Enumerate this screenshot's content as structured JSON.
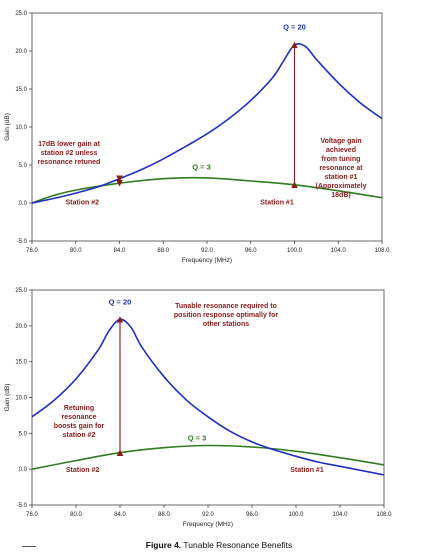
{
  "chart_data": [
    {
      "type": "line",
      "xlabel": "Frequency (MHz)",
      "ylabel": "Gain (dB)",
      "xlim": [
        76.0,
        108.0
      ],
      "ylim": [
        -5.0,
        25.0
      ],
      "x_ticks": [
        "76.0",
        "80.0",
        "84.0",
        "88.0",
        "92.0",
        "96.0",
        "100.0",
        "104.0",
        "108.0"
      ],
      "y_ticks": [
        "-5.0",
        "0.0",
        "5.0",
        "10.0",
        "15.0",
        "20.0",
        "25.0"
      ],
      "grid": false,
      "series": [
        {
          "name": "Q = 20",
          "color": "#1f2fbf",
          "points": [
            [
              76.0,
              0.0
            ],
            [
              78.0,
              0.6
            ],
            [
              80.0,
              1.3
            ],
            [
              82.0,
              2.1
            ],
            [
              84.0,
              3.2
            ],
            [
              86.0,
              4.4
            ],
            [
              88.0,
              5.8
            ],
            [
              90.0,
              7.4
            ],
            [
              92.0,
              9.1
            ],
            [
              94.0,
              11.1
            ],
            [
              96.0,
              13.5
            ],
            [
              98.0,
              16.5
            ],
            [
              99.0,
              18.7
            ],
            [
              100.0,
              20.8
            ],
            [
              101.0,
              20.6
            ],
            [
              102.0,
              18.9
            ],
            [
              104.0,
              15.8
            ],
            [
              106.0,
              13.2
            ],
            [
              108.0,
              11.1
            ]
          ]
        },
        {
          "name": "Q = 3",
          "color": "#2f7d1f",
          "points": [
            [
              76.0,
              0.0
            ],
            [
              78.0,
              1.0
            ],
            [
              80.0,
              1.7
            ],
            [
              84.0,
              2.6
            ],
            [
              88.0,
              3.2
            ],
            [
              92.0,
              3.3
            ],
            [
              96.0,
              2.9
            ],
            [
              100.0,
              2.4
            ],
            [
              104.0,
              1.6
            ],
            [
              108.0,
              0.7
            ]
          ]
        }
      ],
      "annotations": {
        "top_left_red": [
          "17dB lower gain at",
          "station #2 unless",
          "resonance retuned"
        ],
        "right_red": [
          "Voltage gain",
          "achieved",
          "from tuning",
          "resonance at",
          "station #1",
          "(Approximately",
          "18dB)"
        ],
        "q20_label": "Q = 20",
        "q3_label": "Q = 3",
        "station2": "Station #2",
        "station1": "Station #1"
      },
      "arrows": [
        {
          "x": 100.0,
          "y_from": 2.4,
          "y_to": 20.8
        },
        {
          "x": 84.0,
          "y_from": 3.2,
          "y_to": 2.6
        }
      ]
    },
    {
      "type": "line",
      "xlabel": "Frequency (MHz)",
      "ylabel": "Gain (dB)",
      "xlim": [
        76.0,
        108.0
      ],
      "ylim": [
        -5.0,
        25.0
      ],
      "x_ticks": [
        "76.0",
        "80.0",
        "84.0",
        "88.0",
        "92.0",
        "96.0",
        "100.0",
        "104.0",
        "108.0"
      ],
      "y_ticks": [
        "-5.0",
        "0.0",
        "5.0",
        "10.0",
        "15.0",
        "20.0",
        "25.0"
      ],
      "grid": false,
      "series": [
        {
          "name": "Q = 20",
          "color": "#1f2fbf",
          "points": [
            [
              76.0,
              7.3
            ],
            [
              78.0,
              9.6
            ],
            [
              80.0,
              12.6
            ],
            [
              82.0,
              16.6
            ],
            [
              83.0,
              19.3
            ],
            [
              84.0,
              20.9
            ],
            [
              85.0,
              19.8
            ],
            [
              86.0,
              17.0
            ],
            [
              88.0,
              12.9
            ],
            [
              90.0,
              9.7
            ],
            [
              92.0,
              7.3
            ],
            [
              94.0,
              5.3
            ],
            [
              96.0,
              3.8
            ],
            [
              98.0,
              2.7
            ],
            [
              100.0,
              1.8
            ],
            [
              102.0,
              1.0
            ],
            [
              104.0,
              0.4
            ],
            [
              106.0,
              -0.2
            ],
            [
              108.0,
              -0.8
            ]
          ]
        },
        {
          "name": "Q = 3",
          "color": "#2f7d1f",
          "points": [
            [
              76.0,
              0.0
            ],
            [
              80.0,
              1.2
            ],
            [
              84.0,
              2.3
            ],
            [
              88.0,
              3.0
            ],
            [
              92.0,
              3.3
            ],
            [
              96.0,
              3.1
            ],
            [
              100.0,
              2.5
            ],
            [
              104.0,
              1.6
            ],
            [
              108.0,
              0.6
            ]
          ]
        }
      ],
      "annotations": {
        "top_red": [
          "Tunable resonance required to",
          "position response optimally for",
          "other stations"
        ],
        "left_red": [
          "Retuning",
          "resonance",
          "boosts gain for",
          "station #2"
        ],
        "q20_label": "Q = 20",
        "q3_label": "Q = 3",
        "station2": "Station #2",
        "station1": "Station #1"
      },
      "arrows": [
        {
          "x": 84.0,
          "y_from": 2.3,
          "y_to": 20.9
        }
      ]
    }
  ],
  "caption": {
    "bold": "Figure 4.",
    "text": "Tunable Resonance Benefits"
  }
}
